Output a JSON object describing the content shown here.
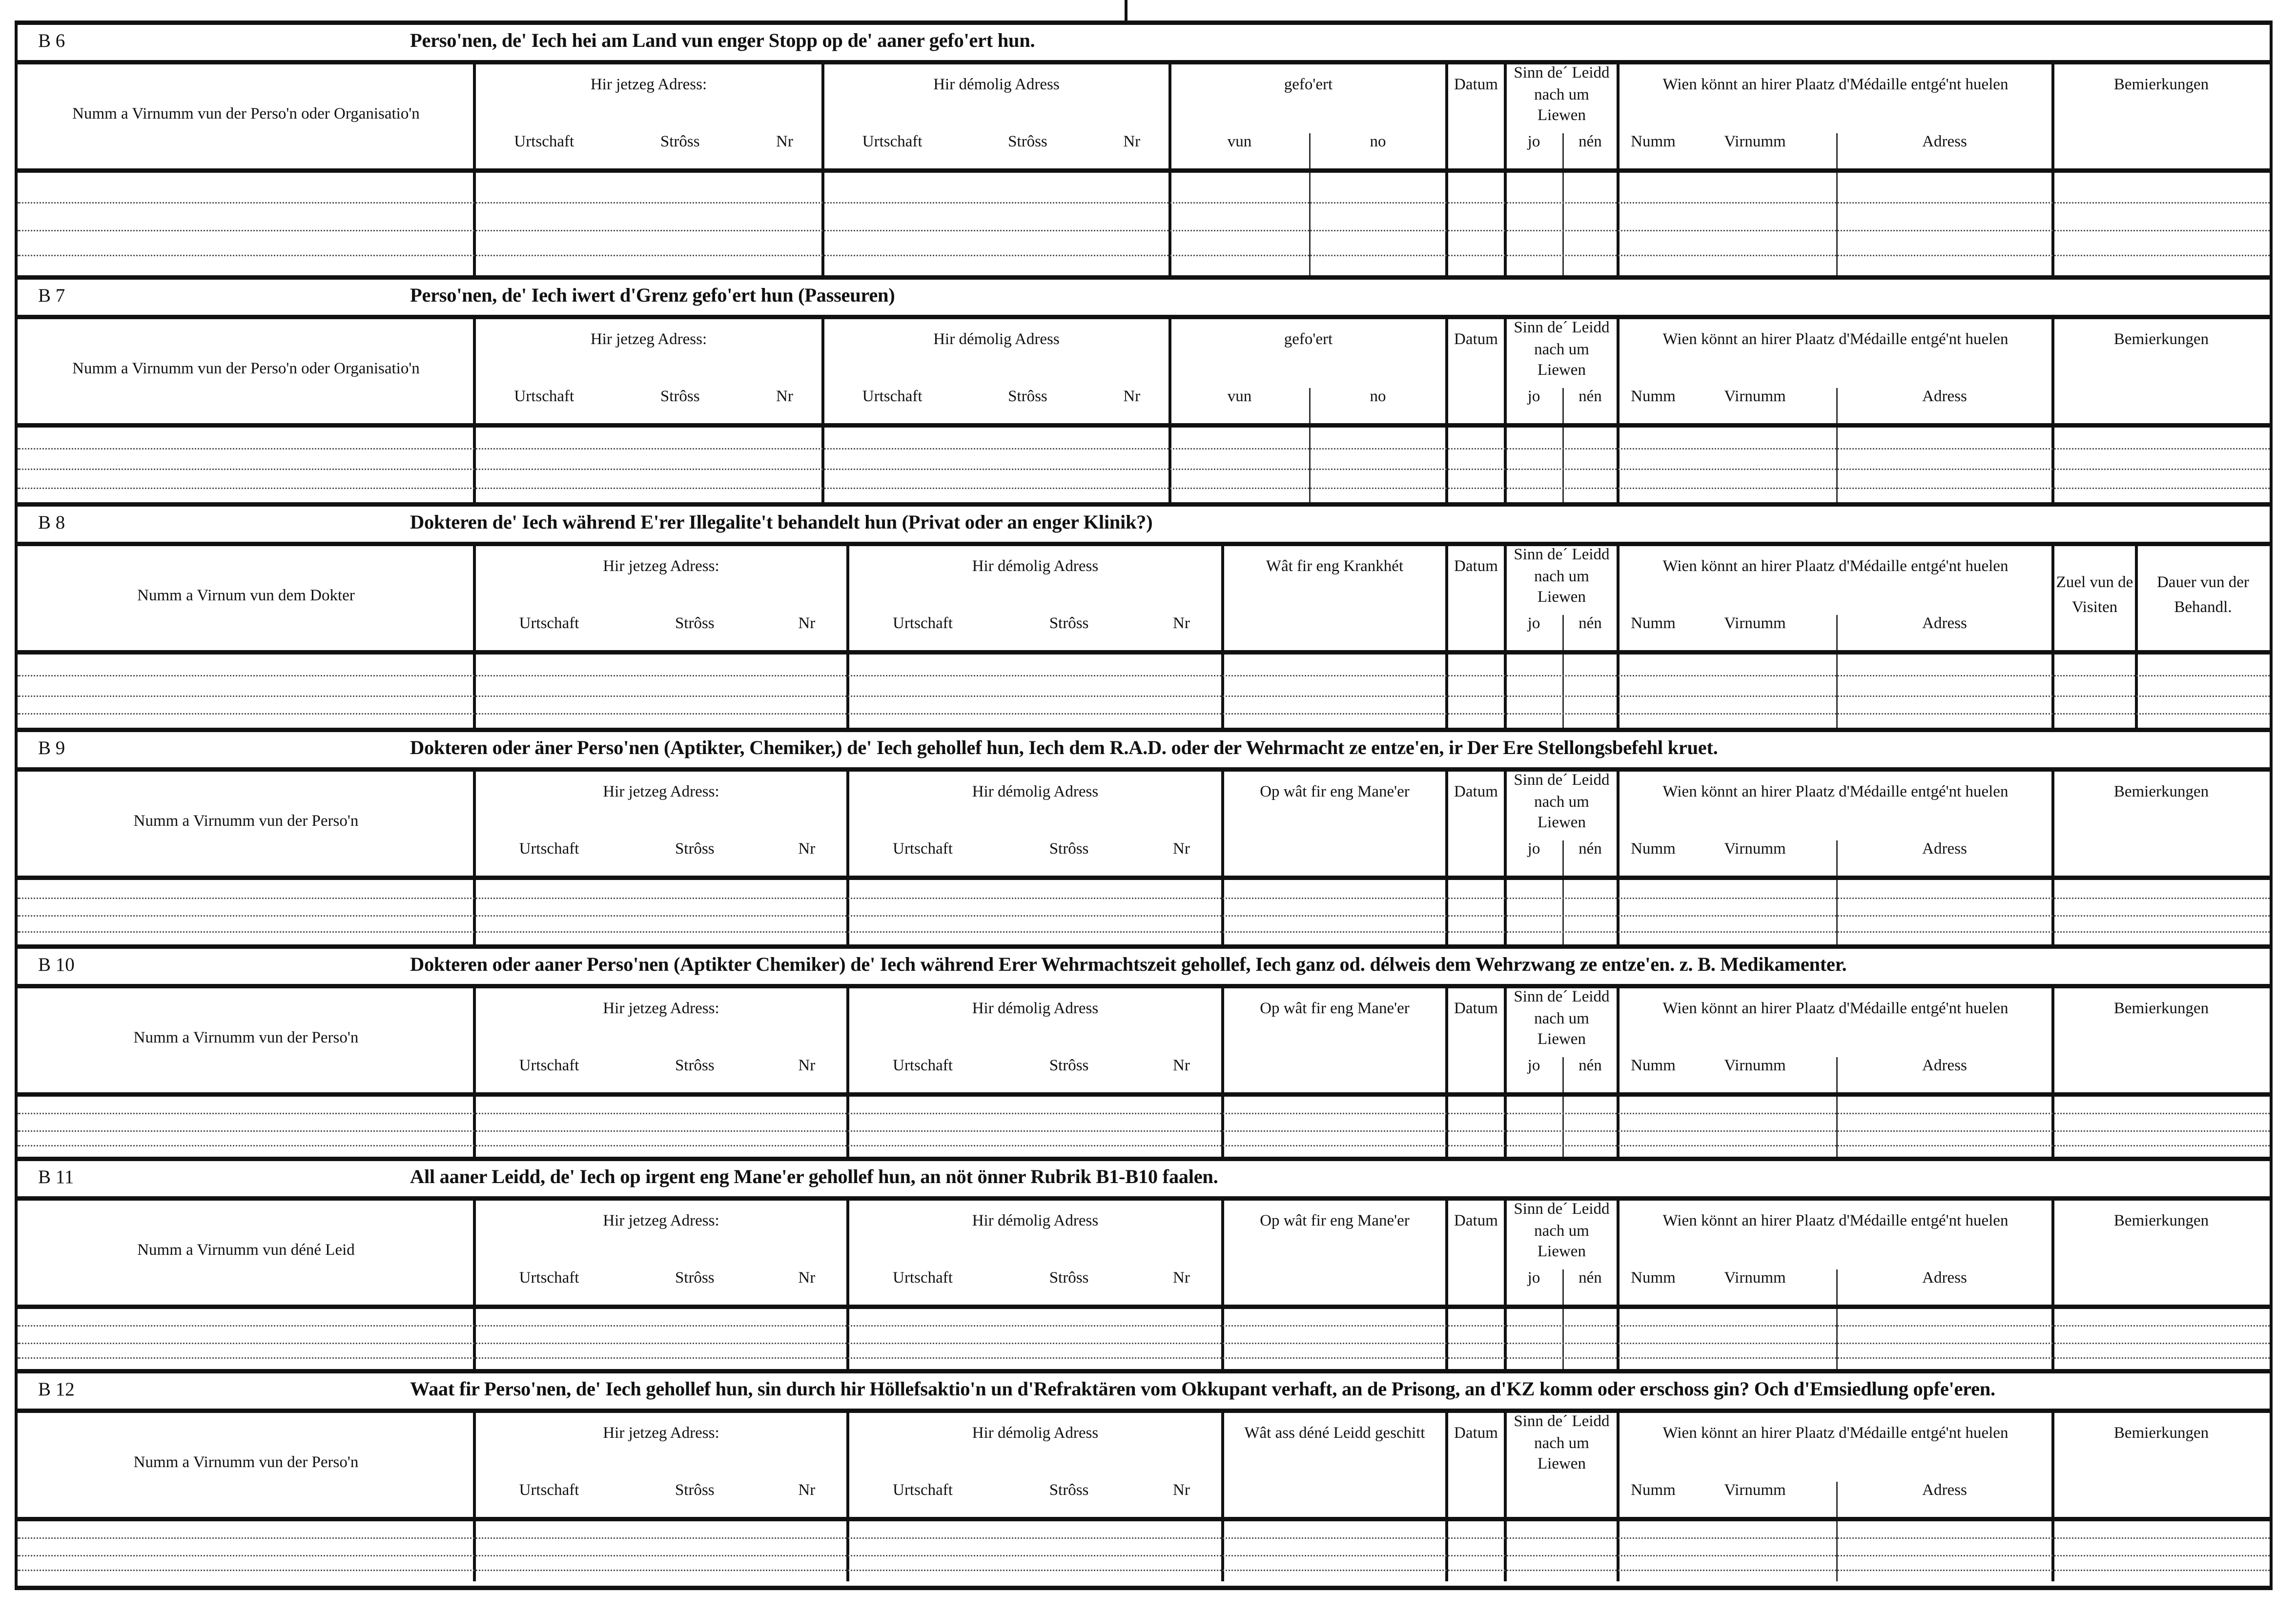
{
  "common": {
    "current_address": "Hir jetzeg Adress:",
    "former_address": "Hir démolig Adress",
    "locality": "Urtschaft",
    "street": "Strôss",
    "number": "Nr",
    "date": "Datum",
    "survived": "Sinn de´ Leidd nach um Liewen",
    "yes": "jo",
    "no": "nén",
    "medal": "Wien könnt an hirer Plaatz d'Médaille entgé'nt huelen",
    "medal_name": "Numm",
    "medal_firstname": "Virnumm",
    "medal_address": "Adress",
    "remarks": "Bemierkungen",
    "led": "gefo'ert",
    "led_from": "vun",
    "led_to": "no",
    "visits": "Zuel vun de Visiten",
    "duration": "Dauer vun der Behandl."
  },
  "sections": [
    {
      "code": "B 6",
      "title": "Perso'nen, de' Iech hei am Land vun enger Stopp  op de' aaner gefo'ert hun.",
      "layout": "travel",
      "name_header": "Numm a Virnumm vun der Perso'n oder Organisatio'n"
    },
    {
      "code": "B 7",
      "title": "Perso'nen, de' Iech iwert d'Grenz gefo'ert hun (Passeuren)",
      "layout": "travel",
      "name_header": "Numm a Virnumm vun der Perso'n oder Organisatio'n"
    },
    {
      "code": "B 8",
      "title": "Dokteren de' Iech während E'rer Illegalite't behandelt hun (Privat oder an enger Klinik?)",
      "layout": "doctor",
      "name_header": "Numm a Virnum vun dem Dokter",
      "col3_header": "Wât fir eng Krankhét"
    },
    {
      "code": "B 9",
      "title": "Dokteren oder äner Perso'nen (Aptikter, Chemiker,) de' Iech gehollef hun, Iech dem R.A.D. oder der Wehrmacht ze entze'en, ir Der Ere Stellongsbefehl kruet.",
      "layout": "help",
      "name_header": "Numm a Virnumm vun der Perso'n",
      "col3_header": "Op wât fir eng Mane'er"
    },
    {
      "code": "B 10",
      "title": "Dokteren oder aaner Perso'nen (Aptikter Chemiker) de' Iech während Erer Wehrmachtszeit gehollef, Iech ganz od. délweis dem Wehrzwang ze entze'en. z. B. Medikamenter.",
      "layout": "help",
      "name_header": "Numm a Virnumm vun der Perso'n",
      "col3_header": "Op wât fir eng Mane'er"
    },
    {
      "code": "B 11",
      "title": "All aaner Leidd, de' Iech op irgent eng Mane'er gehollef hun, an nöt önner Rubrik B1-B10 faalen.",
      "layout": "help",
      "name_header": "Numm a Virnumm vun déné Leid",
      "col3_header": "Op wât fir eng Mane'er"
    },
    {
      "code": "B 12",
      "title": "Waat fir Perso'nen, de' Iech gehollef hun, sin durch hir Höllefsaktio'n un d'Refraktären vom Okkupant verhaft, an de Prisong, an d'KZ komm oder  erschoss gin? Och d'Emsiedlung opfe'eren.",
      "layout": "help",
      "name_header": "Numm a Virnumm vun der Perso'n",
      "col3_header": "Wât ass déné Leidd geschitt"
    }
  ]
}
